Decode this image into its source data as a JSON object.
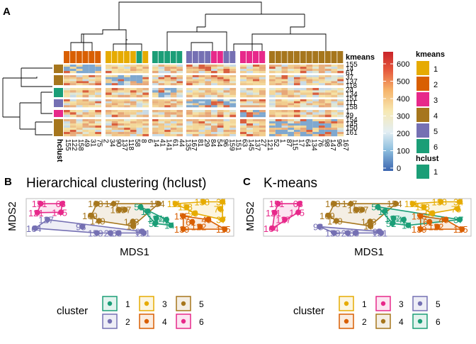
{
  "panel_labels": {
    "a": "A",
    "b": "B",
    "c": "C"
  },
  "heatmap": {
    "kmeans_label": "kmeans",
    "hclust_label": "hclust",
    "row_labels": [
      "155",
      "14",
      "61",
      "37",
      "137",
      "118",
      "24",
      "134",
      "151",
      "111",
      "158",
      "1",
      "49",
      "154",
      "145",
      "150",
      "161"
    ],
    "col_labels": [
      "155",
      "122",
      "158",
      "49",
      "31",
      "75",
      "2",
      "34",
      "90",
      "137",
      "118",
      "58",
      "8",
      "6",
      "14",
      "41",
      "141",
      "61",
      "44",
      "135",
      "167",
      "81",
      "29",
      "84",
      "54",
      "96",
      "159",
      "151",
      "63",
      "145",
      "137",
      "27",
      "121",
      "52",
      "1",
      "87",
      "115",
      "17",
      "64",
      "134",
      "76",
      "98",
      "147",
      "96",
      "167"
    ],
    "legend": {
      "colorbar_ticks": [
        "600",
        "500",
        "400",
        "300",
        "200",
        "100",
        "0"
      ],
      "kmeans_title": "kmeans",
      "kmeans_items": [
        "1",
        "2",
        "3",
        "4",
        "5",
        "6"
      ],
      "hclust_title": "hclust",
      "hclust_items": [
        "1"
      ]
    }
  },
  "palette": {
    "c1": "#1b9e77",
    "c2": "#7570b3",
    "c3": "#e6ab02",
    "c4": "#d95f02",
    "c5": "#a6761d",
    "c6": "#e7298a",
    "k1": "#e6ab02",
    "k2": "#d95f02",
    "k3": "#e7298a",
    "k4": "#a6761d",
    "k5": "#7570b3",
    "k6": "#1b9e77"
  },
  "plot_b": {
    "title": "Hierarchical clustering (hclust)",
    "xlabel": "MDS1",
    "ylabel": "MDS2",
    "legend_title": "cluster",
    "legend_items": [
      "1",
      "2",
      "3",
      "4",
      "5",
      "6"
    ]
  },
  "plot_c": {
    "title": "K-means",
    "xlabel": "MDS1",
    "ylabel": "MDS2",
    "legend_title": "cluster",
    "legend_items": [
      "1",
      "2",
      "3",
      "4",
      "5",
      "6"
    ]
  },
  "chart_data": [
    {
      "type": "heatmap",
      "title": "",
      "annotations": [
        "kmeans",
        "hclust"
      ],
      "colorbar_range": [
        0,
        650
      ],
      "colorbar_ticks": [
        0,
        100,
        200,
        300,
        400,
        500,
        600
      ],
      "row_labels": [
        "155",
        "14",
        "61",
        "37",
        "137",
        "118",
        "24",
        "134",
        "151",
        "111",
        "158",
        "1",
        "49",
        "154",
        "145",
        "150",
        "161"
      ],
      "column_labels": [
        "155",
        "122",
        "158",
        "49",
        "31",
        "75",
        "2",
        "34",
        "90",
        "137",
        "118",
        "58",
        "8",
        "6",
        "14",
        "41",
        "141",
        "61",
        "44",
        "135",
        "167",
        "81",
        "29",
        "84",
        "54",
        "96",
        "159",
        "151",
        "63",
        "145",
        "137",
        "27",
        "121",
        "52",
        "1",
        "87",
        "115",
        "17",
        "64",
        "134",
        "76",
        "98",
        "147",
        "96",
        "167"
      ]
    },
    {
      "type": "scatter",
      "title": "Hierarchical clustering (hclust)",
      "xlabel": "MDS1",
      "ylabel": "MDS2",
      "legend_placement": "bottom",
      "points": [
        {
          "label": "151",
          "x": -0.92,
          "y": 0.72,
          "cluster": "6"
        },
        {
          "label": "63",
          "x": -0.73,
          "y": 0.72,
          "cluster": "6"
        },
        {
          "label": "121",
          "x": -0.95,
          "y": 0.44,
          "cluster": "6"
        },
        {
          "label": "145",
          "x": -0.74,
          "y": 0.45,
          "cluster": "6"
        },
        {
          "label": "127",
          "x": -0.86,
          "y": 0.22,
          "cluster": "2"
        },
        {
          "label": "164",
          "x": -0.97,
          "y": -0.05,
          "cluster": "2"
        },
        {
          "label": "98",
          "x": -0.55,
          "y": 0.0,
          "cluster": "2"
        },
        {
          "label": "159",
          "x": -0.42,
          "y": -0.2,
          "cluster": "2"
        },
        {
          "label": "21",
          "x": -0.3,
          "y": -0.2,
          "cluster": "2"
        },
        {
          "label": "60",
          "x": -0.23,
          "y": -0.2,
          "cluster": "2"
        },
        {
          "label": "99",
          "x": -0.02,
          "y": -0.15,
          "cluster": "2"
        },
        {
          "label": "131",
          "x": 0.0,
          "y": -0.2,
          "cluster": "2"
        },
        {
          "label": "168",
          "x": -0.42,
          "y": 0.72,
          "cluster": "5"
        },
        {
          "label": "147",
          "x": -0.27,
          "y": 0.72,
          "cluster": "5"
        },
        {
          "label": "167",
          "x": -0.22,
          "y": 0.53,
          "cluster": "5"
        },
        {
          "label": "157",
          "x": -0.17,
          "y": 0.53,
          "cluster": "5"
        },
        {
          "label": "169",
          "x": -0.47,
          "y": 0.35,
          "cluster": "5"
        },
        {
          "label": "149",
          "x": -0.4,
          "y": 0.18,
          "cluster": "5"
        },
        {
          "label": "148",
          "x": -0.1,
          "y": 0.16,
          "cluster": "5"
        },
        {
          "label": "19",
          "x": -0.1,
          "y": 0.02,
          "cluster": "5"
        },
        {
          "label": "154",
          "x": 0.13,
          "y": 0.72,
          "cluster": "5"
        },
        {
          "label": "51",
          "x": -0.03,
          "y": 0.62,
          "cluster": "1"
        },
        {
          "label": "18",
          "x": 0.03,
          "y": 0.48,
          "cluster": "1"
        },
        {
          "label": "137",
          "x": 0.11,
          "y": 0.26,
          "cluster": "1"
        },
        {
          "label": "41",
          "x": 0.2,
          "y": 0.22,
          "cluster": "1"
        },
        {
          "label": "52",
          "x": 0.1,
          "y": 0.1,
          "cluster": "1"
        },
        {
          "label": "14",
          "x": 0.24,
          "y": 0.04,
          "cluster": "1"
        },
        {
          "label": "111",
          "x": 0.28,
          "y": 0.72,
          "cluster": "3"
        },
        {
          "label": "138",
          "x": 0.53,
          "y": 0.78,
          "cluster": "3"
        },
        {
          "label": "34",
          "x": 0.7,
          "y": 0.78,
          "cluster": "3"
        },
        {
          "label": "118",
          "x": 0.38,
          "y": 0.62,
          "cluster": "3"
        },
        {
          "label": "90",
          "x": 0.45,
          "y": 0.42,
          "cluster": "3"
        },
        {
          "label": "75",
          "x": 0.68,
          "y": 0.56,
          "cluster": "3"
        },
        {
          "label": "37",
          "x": 0.7,
          "y": 0.22,
          "cluster": "3"
        },
        {
          "label": "155",
          "x": 0.35,
          "y": 0.33,
          "cluster": "4"
        },
        {
          "label": "61",
          "x": 0.43,
          "y": 0.15,
          "cluster": "4"
        },
        {
          "label": "49",
          "x": 0.57,
          "y": 0.22,
          "cluster": "4"
        },
        {
          "label": "122",
          "x": 0.5,
          "y": 0.0,
          "cluster": "4"
        },
        {
          "label": "139",
          "x": 0.35,
          "y": -0.08,
          "cluster": "4"
        },
        {
          "label": "115",
          "x": 0.72,
          "y": -0.08,
          "cluster": "4"
        }
      ]
    },
    {
      "type": "scatter",
      "title": "K-means",
      "xlabel": "MDS1",
      "ylabel": "MDS2",
      "legend_placement": "bottom",
      "points": [
        {
          "label": "151",
          "x": -0.92,
          "y": 0.72,
          "cluster": "3"
        },
        {
          "label": "63",
          "x": -0.73,
          "y": 0.72,
          "cluster": "3"
        },
        {
          "label": "121",
          "x": -0.95,
          "y": 0.44,
          "cluster": "3"
        },
        {
          "label": "145",
          "x": -0.74,
          "y": 0.45,
          "cluster": "3"
        },
        {
          "label": "127",
          "x": -0.86,
          "y": 0.22,
          "cluster": "3"
        },
        {
          "label": "164",
          "x": -0.97,
          "y": -0.05,
          "cluster": "3"
        },
        {
          "label": "98",
          "x": -0.55,
          "y": 0.0,
          "cluster": "5"
        },
        {
          "label": "159",
          "x": -0.42,
          "y": -0.2,
          "cluster": "5"
        },
        {
          "label": "21",
          "x": -0.3,
          "y": -0.2,
          "cluster": "5"
        },
        {
          "label": "60",
          "x": -0.23,
          "y": -0.2,
          "cluster": "5"
        },
        {
          "label": "99",
          "x": -0.02,
          "y": -0.15,
          "cluster": "5"
        },
        {
          "label": "131",
          "x": 0.0,
          "y": -0.2,
          "cluster": "5"
        },
        {
          "label": "168",
          "x": -0.42,
          "y": 0.72,
          "cluster": "4"
        },
        {
          "label": "147",
          "x": -0.27,
          "y": 0.72,
          "cluster": "4"
        },
        {
          "label": "167",
          "x": -0.22,
          "y": 0.53,
          "cluster": "4"
        },
        {
          "label": "157",
          "x": -0.17,
          "y": 0.53,
          "cluster": "4"
        },
        {
          "label": "169",
          "x": -0.47,
          "y": 0.35,
          "cluster": "4"
        },
        {
          "label": "149",
          "x": -0.4,
          "y": 0.18,
          "cluster": "4"
        },
        {
          "label": "148",
          "x": -0.1,
          "y": 0.16,
          "cluster": "4"
        },
        {
          "label": "19",
          "x": -0.1,
          "y": 0.02,
          "cluster": "4"
        },
        {
          "label": "154",
          "x": 0.13,
          "y": 0.72,
          "cluster": "4"
        },
        {
          "label": "51",
          "x": -0.03,
          "y": 0.62,
          "cluster": "6"
        },
        {
          "label": "18",
          "x": 0.03,
          "y": 0.48,
          "cluster": "6"
        },
        {
          "label": "137",
          "x": 0.11,
          "y": 0.26,
          "cluster": "6"
        },
        {
          "label": "41",
          "x": 0.2,
          "y": 0.22,
          "cluster": "6"
        },
        {
          "label": "52",
          "x": 0.1,
          "y": 0.1,
          "cluster": "6"
        },
        {
          "label": "14",
          "x": 0.24,
          "y": 0.04,
          "cluster": "6"
        },
        {
          "label": "111",
          "x": 0.28,
          "y": 0.72,
          "cluster": "1"
        },
        {
          "label": "138",
          "x": 0.53,
          "y": 0.78,
          "cluster": "1"
        },
        {
          "label": "34",
          "x": 0.7,
          "y": 0.78,
          "cluster": "1"
        },
        {
          "label": "118",
          "x": 0.38,
          "y": 0.62,
          "cluster": "1"
        },
        {
          "label": "90",
          "x": 0.45,
          "y": 0.42,
          "cluster": "1"
        },
        {
          "label": "75",
          "x": 0.68,
          "y": 0.56,
          "cluster": "1"
        },
        {
          "label": "37",
          "x": 0.7,
          "y": 0.22,
          "cluster": "6"
        },
        {
          "label": "155",
          "x": 0.35,
          "y": 0.33,
          "cluster": "2"
        },
        {
          "label": "61",
          "x": 0.43,
          "y": 0.15,
          "cluster": "2"
        },
        {
          "label": "49",
          "x": 0.57,
          "y": 0.22,
          "cluster": "2"
        },
        {
          "label": "122",
          "x": 0.5,
          "y": 0.0,
          "cluster": "2"
        },
        {
          "label": "139",
          "x": 0.35,
          "y": -0.08,
          "cluster": "2"
        },
        {
          "label": "115",
          "x": 0.72,
          "y": -0.08,
          "cluster": "2"
        }
      ]
    }
  ]
}
